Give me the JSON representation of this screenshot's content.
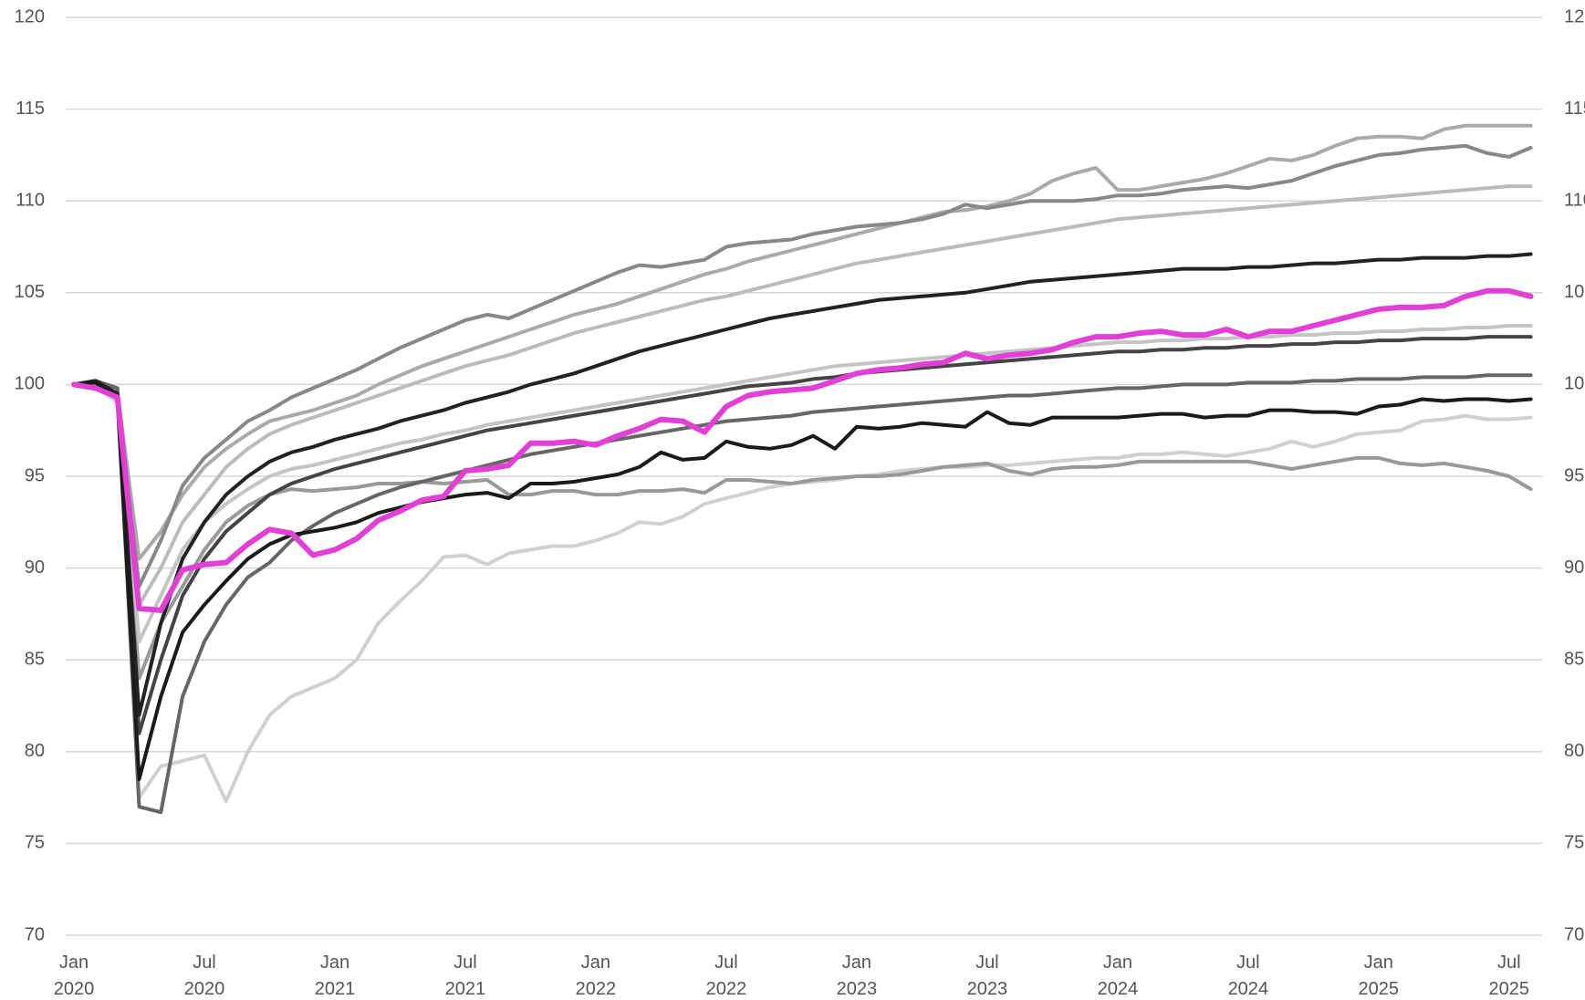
{
  "chart_data": {
    "type": "line",
    "categories": [
      "Jan 2020",
      null,
      null,
      null,
      null,
      null,
      "Jul 2020",
      null,
      null,
      null,
      null,
      null,
      "Jan 2021",
      null,
      null,
      null,
      null,
      null,
      "Jul 2021",
      null,
      null,
      null,
      null,
      null,
      "Jan 2022",
      null,
      null,
      null,
      null,
      null,
      "Jul 2022",
      null,
      null,
      null,
      null,
      null,
      "Jan 2023",
      null,
      null,
      null,
      null,
      null,
      "Jul 2023",
      null,
      null,
      null,
      null,
      null,
      "Jan 2024",
      null,
      null,
      null,
      null,
      null,
      "Jul 2024",
      null,
      null,
      null,
      null,
      null,
      "Jan 2025",
      null,
      null,
      null,
      null,
      null,
      "Jul 2025",
      null
    ],
    "ylim": [
      70,
      120
    ],
    "yticks": [
      70,
      75,
      80,
      85,
      90,
      95,
      100,
      105,
      110,
      115,
      120
    ],
    "grid": true,
    "right_axis": true,
    "series": [
      {
        "color": "#aaaaaa",
        "values": [
          100,
          100.1,
          99.6,
          90.5,
          92,
          94,
          95.5,
          96.5,
          97.3,
          98,
          98.3,
          98.6,
          99,
          99.4,
          100,
          100.5,
          101,
          101.4,
          101.8,
          102.2,
          102.6,
          103,
          103.4,
          103.8,
          104.1,
          104.4,
          104.8,
          105.2,
          105.6,
          106,
          106.3,
          106.7,
          107,
          107.3,
          107.6,
          107.9,
          108.2,
          108.5,
          108.8,
          109.1,
          109.4,
          109.5,
          109.7,
          110,
          110.4,
          111.1,
          111.5,
          111.8,
          110.6,
          110.6,
          110.8,
          111,
          111.2,
          111.5,
          111.9,
          112.3,
          112.2,
          112.5,
          113,
          113.4,
          113.5,
          113.5,
          113.4,
          113.9,
          114.1,
          114.1,
          114.1,
          114.1
        ]
      },
      {
        "color": "#888888",
        "values": [
          100,
          100,
          99.4,
          89,
          91.5,
          94.5,
          96,
          97,
          98,
          98.6,
          99.3,
          99.8,
          100.3,
          100.8,
          101.4,
          102,
          102.5,
          103,
          103.5,
          103.8,
          103.6,
          104.1,
          104.6,
          105.1,
          105.6,
          106.1,
          106.5,
          106.4,
          106.6,
          106.8,
          107.5,
          107.7,
          107.8,
          107.9,
          108.2,
          108.4,
          108.6,
          108.7,
          108.8,
          109,
          109.3,
          109.8,
          109.6,
          109.8,
          110,
          110,
          110,
          110.1,
          110.3,
          110.3,
          110.4,
          110.6,
          110.7,
          110.8,
          110.7,
          110.9,
          111.1,
          111.5,
          111.9,
          112.2,
          112.5,
          112.6,
          112.8,
          112.9,
          113,
          112.6,
          112.4,
          112.9
        ]
      },
      {
        "color": "#d0d0d0",
        "values": [
          100,
          100,
          99,
          77.5,
          79.2,
          79.5,
          79.8,
          77.3,
          80,
          82,
          83,
          83.5,
          84,
          85,
          87,
          88.2,
          89.3,
          90.6,
          90.7,
          90.2,
          90.8,
          91,
          91.2,
          91.2,
          91.5,
          91.9,
          92.5,
          92.4,
          92.8,
          93.5,
          93.8,
          94.1,
          94.4,
          94.6,
          94.7,
          94.8,
          95,
          95.1,
          95.3,
          95.4,
          95.5,
          95.5,
          95.6,
          95.6,
          95.7,
          95.8,
          95.9,
          96,
          96,
          96.2,
          96.2,
          96.3,
          96.2,
          96.1,
          96.3,
          96.5,
          96.9,
          96.6,
          96.9,
          97.3,
          97.4,
          97.5,
          98,
          98.1,
          98.3,
          98.1,
          98.1,
          98.2
        ]
      },
      {
        "color": "#999999",
        "values": [
          100,
          100,
          99.3,
          84,
          87,
          89,
          91,
          92.5,
          93.4,
          94,
          94.3,
          94.2,
          94.3,
          94.4,
          94.6,
          94.6,
          94.7,
          94.6,
          94.7,
          94.8,
          94,
          94,
          94.2,
          94.2,
          94,
          94,
          94.2,
          94.2,
          94.3,
          94.1,
          94.8,
          94.8,
          94.7,
          94.6,
          94.8,
          94.9,
          95,
          95,
          95.1,
          95.3,
          95.5,
          95.6,
          95.7,
          95.3,
          95.1,
          95.4,
          95.5,
          95.5,
          95.6,
          95.8,
          95.8,
          95.8,
          95.8,
          95.8,
          95.8,
          95.6,
          95.4,
          95.6,
          95.8,
          96,
          96,
          95.7,
          95.6,
          95.7,
          95.5,
          95.3,
          95,
          94.3
        ]
      },
      {
        "color": "#bbbbbb",
        "values": [
          100,
          100,
          99.5,
          88,
          90,
          92.5,
          94,
          95.5,
          96.5,
          97.3,
          97.8,
          98.2,
          98.6,
          99,
          99.4,
          99.8,
          100.2,
          100.6,
          101,
          101.3,
          101.6,
          102,
          102.4,
          102.8,
          103.1,
          103.4,
          103.7,
          104,
          104.3,
          104.6,
          104.8,
          105.1,
          105.4,
          105.7,
          106,
          106.3,
          106.6,
          106.8,
          107,
          107.2,
          107.4,
          107.6,
          107.8,
          108,
          108.2,
          108.4,
          108.6,
          108.8,
          109,
          109.1,
          109.2,
          109.3,
          109.4,
          109.5,
          109.6,
          109.7,
          109.8,
          109.9,
          110,
          110.1,
          110.2,
          110.3,
          110.4,
          110.5,
          110.6,
          110.7,
          110.8,
          110.8
        ]
      },
      {
        "color": "#c4c4c4",
        "values": [
          100,
          100,
          99.6,
          86,
          88.5,
          91,
          92.5,
          93.5,
          94.3,
          95,
          95.4,
          95.6,
          95.9,
          96.2,
          96.5,
          96.8,
          97,
          97.3,
          97.5,
          97.8,
          98,
          98.2,
          98.4,
          98.6,
          98.8,
          99,
          99.2,
          99.4,
          99.6,
          99.8,
          100,
          100.2,
          100.4,
          100.6,
          100.8,
          101,
          101.1,
          101.2,
          101.3,
          101.4,
          101.5,
          101.6,
          101.7,
          101.8,
          101.9,
          102,
          102.1,
          102.2,
          102.3,
          102.3,
          102.4,
          102.4,
          102.5,
          102.5,
          102.6,
          102.6,
          102.7,
          102.7,
          102.8,
          102.8,
          102.9,
          102.9,
          103,
          103,
          103.1,
          103.1,
          103.2,
          103.2
        ]
      },
      {
        "color": "#666666",
        "values": [
          100,
          100.2,
          99.8,
          77,
          76.7,
          83,
          86,
          88,
          89.5,
          90.3,
          91.5,
          92.3,
          93,
          93.5,
          94,
          94.4,
          94.7,
          95,
          95.3,
          95.6,
          95.9,
          96.2,
          96.4,
          96.6,
          96.8,
          97,
          97.2,
          97.4,
          97.6,
          97.8,
          98,
          98.1,
          98.2,
          98.3,
          98.5,
          98.6,
          98.7,
          98.8,
          98.9,
          99,
          99.1,
          99.2,
          99.3,
          99.4,
          99.4,
          99.5,
          99.6,
          99.7,
          99.8,
          99.8,
          99.9,
          100,
          100,
          100,
          100.1,
          100.1,
          100.1,
          100.2,
          100.2,
          100.3,
          100.3,
          100.3,
          100.4,
          100.4,
          100.4,
          100.5,
          100.5,
          100.5
        ]
      },
      {
        "color": "#444444",
        "values": [
          100,
          100.1,
          99.4,
          81,
          85,
          88.5,
          90.5,
          92,
          93,
          94,
          94.6,
          95,
          95.4,
          95.7,
          96,
          96.3,
          96.6,
          96.9,
          97.2,
          97.5,
          97.7,
          97.9,
          98.1,
          98.3,
          98.5,
          98.7,
          98.9,
          99.1,
          99.3,
          99.5,
          99.7,
          99.9,
          100,
          100.1,
          100.3,
          100.4,
          100.6,
          100.7,
          100.8,
          100.9,
          101,
          101.1,
          101.2,
          101.3,
          101.4,
          101.5,
          101.6,
          101.7,
          101.8,
          101.8,
          101.9,
          101.9,
          102,
          102,
          102.1,
          102.1,
          102.2,
          102.2,
          102.3,
          102.3,
          102.4,
          102.4,
          102.5,
          102.5,
          102.5,
          102.6,
          102.6,
          102.6
        ]
      },
      {
        "color": "#222222",
        "values": [
          100,
          100.2,
          99.5,
          82,
          87,
          90.5,
          92.5,
          94,
          95,
          95.8,
          96.3,
          96.6,
          97,
          97.3,
          97.6,
          98,
          98.3,
          98.6,
          99,
          99.3,
          99.6,
          100,
          100.3,
          100.6,
          101,
          101.4,
          101.8,
          102.1,
          102.4,
          102.7,
          103,
          103.3,
          103.6,
          103.8,
          104,
          104.2,
          104.4,
          104.6,
          104.7,
          104.8,
          104.9,
          105,
          105.2,
          105.4,
          105.6,
          105.7,
          105.8,
          105.9,
          106,
          106.1,
          106.2,
          106.3,
          106.3,
          106.3,
          106.4,
          106.4,
          106.5,
          106.6,
          106.6,
          106.7,
          106.8,
          106.8,
          106.9,
          106.9,
          106.9,
          107,
          107,
          107.1
        ]
      },
      {
        "color": "#1a1a1a",
        "values": [
          100,
          100.1,
          99.2,
          78.5,
          83,
          86.5,
          88,
          89.3,
          90.5,
          91.3,
          91.8,
          92,
          92.2,
          92.5,
          93,
          93.3,
          93.6,
          93.8,
          94,
          94.1,
          93.8,
          94.6,
          94.6,
          94.7,
          94.9,
          95.1,
          95.5,
          96.3,
          95.9,
          96,
          96.9,
          96.6,
          96.5,
          96.7,
          97.2,
          96.5,
          97.7,
          97.6,
          97.7,
          97.9,
          97.8,
          97.7,
          98.5,
          97.9,
          97.8,
          98.2,
          98.2,
          98.2,
          98.2,
          98.3,
          98.4,
          98.4,
          98.2,
          98.3,
          98.3,
          98.6,
          98.6,
          98.5,
          98.5,
          98.4,
          98.8,
          98.9,
          99.2,
          99.1,
          99.2,
          99.2,
          99.1,
          99.2
        ]
      },
      {
        "color": "#e23fd6",
        "values": [
          100,
          99.8,
          99.3,
          87.8,
          87.7,
          89.9,
          90.2,
          90.3,
          91.3,
          92.1,
          91.9,
          90.7,
          91,
          91.6,
          92.6,
          93.1,
          93.7,
          93.9,
          95.3,
          95.4,
          95.6,
          96.8,
          96.8,
          96.9,
          96.7,
          97.2,
          97.6,
          98.1,
          98,
          97.4,
          98.8,
          99.4,
          99.6,
          99.7,
          99.8,
          100.2,
          100.6,
          100.8,
          100.9,
          101.1,
          101.2,
          101.7,
          101.4,
          101.6,
          101.7,
          101.9,
          102.3,
          102.6,
          102.6,
          102.8,
          102.9,
          102.7,
          102.7,
          103,
          102.6,
          102.9,
          102.9,
          103.2,
          103.5,
          103.8,
          104.1,
          104.2,
          104.2,
          104.3,
          104.8,
          105.1,
          105.1,
          104.8
        ]
      }
    ]
  }
}
